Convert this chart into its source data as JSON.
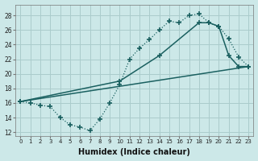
{
  "xlabel": "Humidex (Indice chaleur)",
  "bg_color": "#cce8e8",
  "grid_color": "#aacccc",
  "line_color": "#1a6060",
  "xlim": [
    -0.5,
    23.5
  ],
  "ylim": [
    11.5,
    29.5
  ],
  "xticks": [
    0,
    1,
    2,
    3,
    4,
    5,
    6,
    7,
    8,
    9,
    10,
    11,
    12,
    13,
    14,
    15,
    16,
    17,
    18,
    19,
    20,
    21,
    22,
    23
  ],
  "yticks": [
    12,
    14,
    16,
    18,
    20,
    22,
    24,
    26,
    28
  ],
  "line1_x": [
    0,
    1,
    2,
    3,
    4,
    5,
    6,
    7,
    8,
    9,
    10,
    11,
    12,
    13,
    14,
    15,
    16,
    17,
    18,
    19,
    20,
    21,
    22,
    23
  ],
  "line1_y": [
    16.2,
    16.0,
    15.7,
    15.5,
    14.0,
    13.0,
    12.7,
    12.2,
    13.8,
    16.0,
    18.5,
    22.0,
    23.5,
    24.7,
    26.0,
    27.2,
    27.0,
    28.0,
    28.2,
    27.0,
    26.5,
    24.8,
    22.3,
    21.0
  ],
  "line2_x": [
    0,
    23
  ],
  "line2_y": [
    16.2,
    21.0
  ],
  "line3_x": [
    0,
    10,
    14,
    18,
    19,
    20,
    21,
    22,
    23
  ],
  "line3_y": [
    16.2,
    19.0,
    22.5,
    27.0,
    27.0,
    26.5,
    22.5,
    21.0,
    21.0
  ]
}
